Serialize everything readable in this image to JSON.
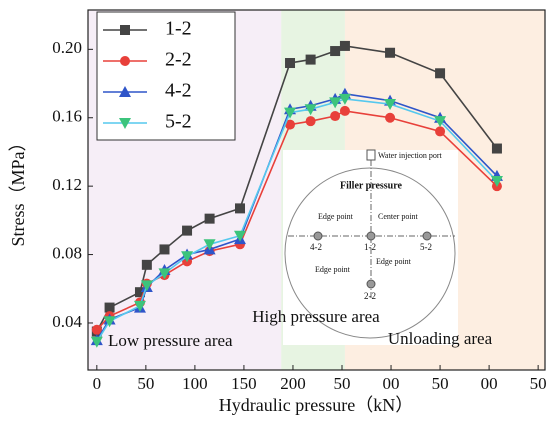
{
  "chart_data": {
    "type": "line",
    "x_label": "Hydraulic pressure（kN）",
    "y_label": "Stress（MPa）",
    "xlim": [
      -9,
      457
    ],
    "ylim": [
      0.0125,
      0.223
    ],
    "xticks": [
      0,
      50,
      100,
      150,
      200,
      {
        "value": 250,
        "label": "50"
      },
      {
        "value": 300,
        "label": "00"
      },
      {
        "value": 350,
        "label": "50"
      },
      {
        "value": 400,
        "label": "00"
      },
      {
        "value": 450,
        "label": "50"
      }
    ],
    "yticks": [
      0.04,
      0.08,
      0.12,
      0.16,
      {
        "value": 0.2,
        "label": "0.20"
      }
    ],
    "legend": "upper left",
    "x": [
      0,
      13,
      44,
      51,
      69,
      92,
      115,
      146,
      197,
      218,
      243,
      253,
      299,
      350,
      408
    ],
    "series": [
      {
        "name": "1-2",
        "color": "#444444",
        "marker": "square",
        "values": [
          0.035,
          0.049,
          0.058,
          0.074,
          0.083,
          0.094,
          0.101,
          0.107,
          0.192,
          0.194,
          0.199,
          0.202,
          0.198,
          0.186,
          0.142
        ]
      },
      {
        "name": "2-2",
        "color": "#e8403a",
        "marker": "circle",
        "values": [
          0.036,
          0.044,
          0.052,
          0.063,
          0.068,
          0.076,
          0.082,
          0.086,
          0.156,
          0.158,
          0.161,
          0.164,
          0.16,
          0.152,
          0.12
        ]
      },
      {
        "name": "4-2",
        "color": "#2f55c9",
        "marker": "triangle",
        "values": [
          0.03,
          0.042,
          0.049,
          0.061,
          0.071,
          0.08,
          0.083,
          0.089,
          0.165,
          0.167,
          0.171,
          0.174,
          0.17,
          0.16,
          0.126
        ]
      },
      {
        "name": "5-2",
        "color": "#55c8ee",
        "marker_color": "#3cc47c",
        "marker": "triangle-down",
        "values": [
          0.029,
          0.041,
          0.05,
          0.062,
          0.069,
          0.079,
          0.086,
          0.091,
          0.163,
          0.165,
          0.169,
          0.171,
          0.168,
          0.158,
          0.123
        ]
      }
    ],
    "regions": [
      {
        "label": "Low pressure area",
        "from": -9,
        "to": 188,
        "color": "#f6eef7"
      },
      {
        "label": "High pressure area",
        "from": 188,
        "to": 253,
        "color": "#e7f4e2"
      },
      {
        "label": "Unloading area",
        "from": 253,
        "to": 457,
        "color": "#fdeee1"
      }
    ]
  },
  "inset": {
    "port": "Water injection port",
    "filler": "Filler pressure",
    "edge_left": "Edge point",
    "center": "Center point",
    "p42": "4-2",
    "p12": "1-2",
    "p52": "5-2",
    "edge_right": "Edge point",
    "edge_bottom": "Edge point",
    "p22": "2-2"
  }
}
